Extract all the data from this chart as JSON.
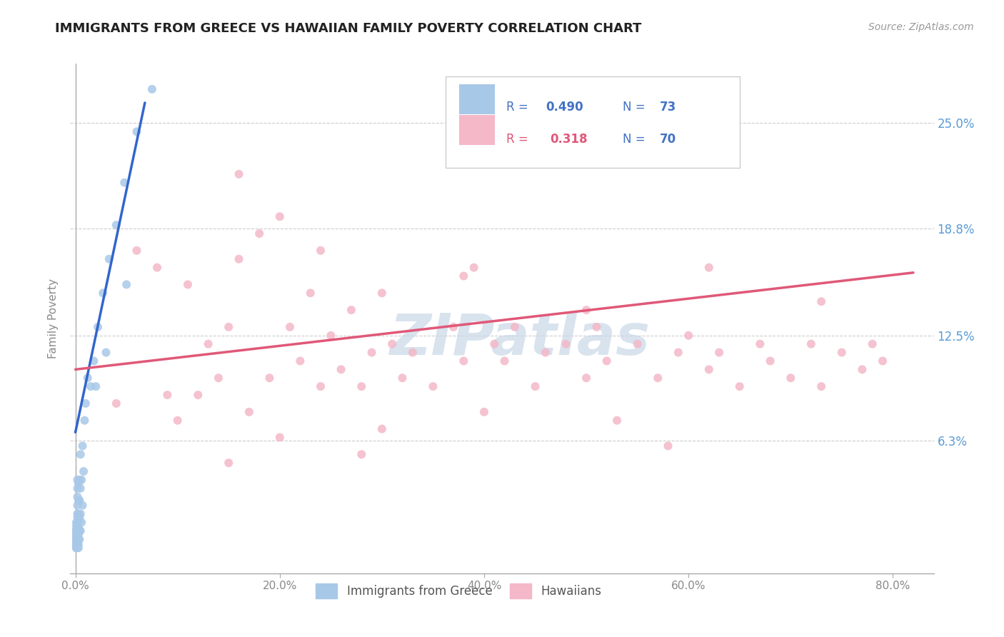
{
  "title": "IMMIGRANTS FROM GREECE VS HAWAIIAN FAMILY POVERTY CORRELATION CHART",
  "source": "Source: ZipAtlas.com",
  "ylabel": "Family Poverty",
  "ytick_labels": [
    "",
    "6.3%",
    "12.5%",
    "18.8%",
    "25.0%"
  ],
  "ytick_values": [
    0.0,
    0.063,
    0.125,
    0.188,
    0.25
  ],
  "xtick_values": [
    0.0,
    0.2,
    0.4,
    0.6,
    0.8
  ],
  "xtick_labels": [
    "0.0%",
    "20.0%",
    "40.0%",
    "60.0%",
    "80.0%"
  ],
  "xmin": -0.005,
  "xmax": 0.84,
  "ymin": -0.015,
  "ymax": 0.285,
  "color_greece": "#a8c8e8",
  "color_greece_line": "#3366cc",
  "color_hawaii": "#f4b8c8",
  "color_hawaii_line": "#e05878",
  "color_axis": "#aaaaaa",
  "color_grid": "#cccccc",
  "color_ytick": "#5b9bd5",
  "color_xtick": "#888888",
  "watermark": "ZIPatlas",
  "watermark_color": "#c8d8e8",
  "legend_label_greece": "Immigrants from Greece",
  "legend_label_hawaii": "Hawaiians",
  "greece_line_x": [
    0.0,
    0.068
  ],
  "greece_line_y": [
    0.068,
    0.262
  ],
  "hawaii_line_x": [
    0.0,
    0.82
  ],
  "hawaii_line_y": [
    0.105,
    0.162
  ],
  "greece_x": [
    0.001,
    0.001,
    0.001,
    0.001,
    0.001,
    0.001,
    0.001,
    0.001,
    0.001,
    0.001,
    0.001,
    0.001,
    0.001,
    0.001,
    0.001,
    0.001,
    0.001,
    0.001,
    0.001,
    0.001,
    0.002,
    0.002,
    0.002,
    0.002,
    0.002,
    0.002,
    0.002,
    0.002,
    0.002,
    0.002,
    0.002,
    0.002,
    0.002,
    0.002,
    0.002,
    0.003,
    0.003,
    0.003,
    0.003,
    0.003,
    0.003,
    0.003,
    0.003,
    0.003,
    0.004,
    0.004,
    0.004,
    0.004,
    0.004,
    0.005,
    0.005,
    0.005,
    0.005,
    0.006,
    0.006,
    0.007,
    0.007,
    0.008,
    0.009,
    0.01,
    0.012,
    0.015,
    0.018,
    0.022,
    0.027,
    0.033,
    0.04,
    0.048,
    0.06,
    0.075,
    0.05,
    0.03,
    0.02
  ],
  "greece_y": [
    0.0,
    0.0,
    0.0,
    0.0,
    0.001,
    0.001,
    0.002,
    0.002,
    0.003,
    0.003,
    0.004,
    0.005,
    0.006,
    0.007,
    0.008,
    0.009,
    0.01,
    0.011,
    0.013,
    0.015,
    0.0,
    0.001,
    0.002,
    0.004,
    0.006,
    0.008,
    0.01,
    0.012,
    0.015,
    0.018,
    0.02,
    0.025,
    0.03,
    0.035,
    0.04,
    0.0,
    0.002,
    0.005,
    0.008,
    0.012,
    0.016,
    0.02,
    0.028,
    0.038,
    0.005,
    0.01,
    0.018,
    0.028,
    0.04,
    0.01,
    0.02,
    0.035,
    0.055,
    0.015,
    0.04,
    0.025,
    0.06,
    0.045,
    0.075,
    0.085,
    0.1,
    0.095,
    0.11,
    0.13,
    0.15,
    0.17,
    0.19,
    0.215,
    0.245,
    0.27,
    0.155,
    0.115,
    0.095
  ],
  "hawaii_x": [
    0.04,
    0.06,
    0.08,
    0.09,
    0.1,
    0.11,
    0.12,
    0.13,
    0.14,
    0.15,
    0.16,
    0.17,
    0.18,
    0.19,
    0.2,
    0.21,
    0.22,
    0.23,
    0.24,
    0.25,
    0.26,
    0.27,
    0.28,
    0.29,
    0.3,
    0.31,
    0.32,
    0.33,
    0.35,
    0.37,
    0.38,
    0.39,
    0.4,
    0.41,
    0.42,
    0.43,
    0.45,
    0.46,
    0.48,
    0.5,
    0.51,
    0.52,
    0.53,
    0.55,
    0.57,
    0.58,
    0.59,
    0.6,
    0.62,
    0.63,
    0.65,
    0.67,
    0.68,
    0.7,
    0.72,
    0.73,
    0.75,
    0.77,
    0.78,
    0.79,
    0.16,
    0.2,
    0.24,
    0.3,
    0.38,
    0.5,
    0.62,
    0.73,
    0.15,
    0.28
  ],
  "hawaii_y": [
    0.085,
    0.175,
    0.165,
    0.09,
    0.075,
    0.155,
    0.09,
    0.12,
    0.1,
    0.13,
    0.17,
    0.08,
    0.185,
    0.1,
    0.065,
    0.13,
    0.11,
    0.15,
    0.095,
    0.125,
    0.105,
    0.14,
    0.095,
    0.115,
    0.07,
    0.12,
    0.1,
    0.115,
    0.095,
    0.13,
    0.11,
    0.165,
    0.08,
    0.12,
    0.11,
    0.13,
    0.095,
    0.115,
    0.12,
    0.1,
    0.13,
    0.11,
    0.075,
    0.12,
    0.1,
    0.06,
    0.115,
    0.125,
    0.105,
    0.115,
    0.095,
    0.12,
    0.11,
    0.1,
    0.12,
    0.095,
    0.115,
    0.105,
    0.12,
    0.11,
    0.22,
    0.195,
    0.175,
    0.15,
    0.16,
    0.14,
    0.165,
    0.145,
    0.05,
    0.055
  ]
}
